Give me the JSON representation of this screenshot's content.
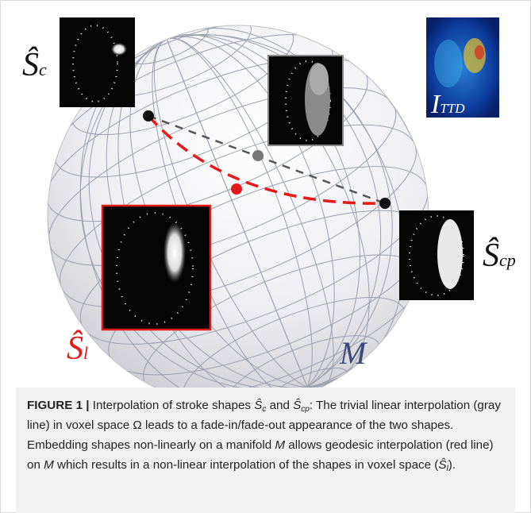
{
  "figure": {
    "labels": {
      "sc": {
        "symbol": "Ŝ",
        "subscript": "c"
      },
      "scp": {
        "symbol": "Ŝ",
        "subscript": "cp"
      },
      "sl": {
        "symbol": "Ŝ",
        "subscript": "l"
      },
      "manifold": "M",
      "ittd": {
        "symbol": "I",
        "subscript": "TTD"
      }
    }
  },
  "caption": {
    "segments": [
      "FIGURE 1 |",
      " Interpolation of stroke shapes ",
      "Ŝ",
      "c",
      " and ",
      "Ŝ",
      "cp",
      ": The trivial linear interpolation (gray line) in voxel space Ω leads to a fade-in/fade-out appearance of the two shapes. Embedding shapes non-linearly on a manifold ",
      "M",
      " allows geodesic interpolation (red line) on ",
      "M",
      " which results in a non-linear interpolation of the shapes in voxel space (",
      "Ŝ",
      "l",
      ")."
    ]
  }
}
